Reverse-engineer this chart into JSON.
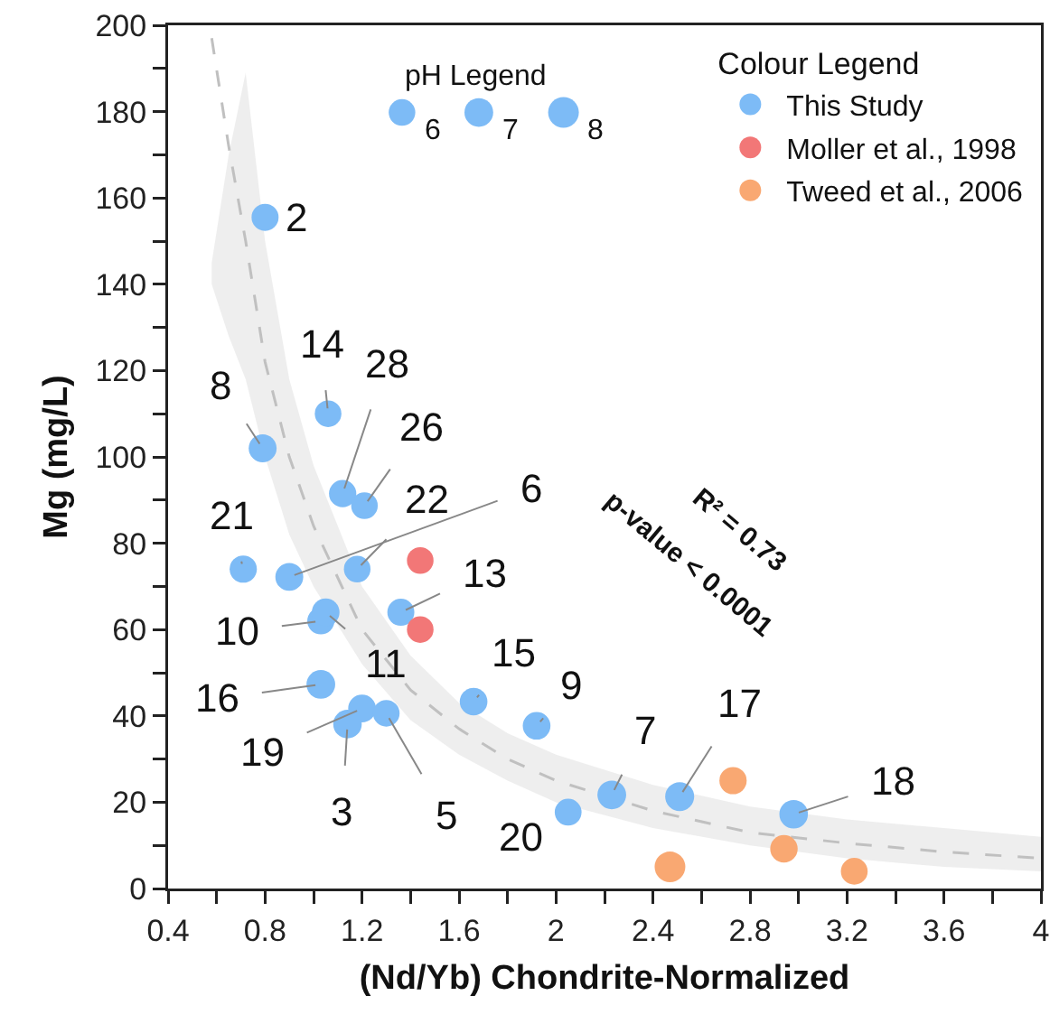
{
  "chart_data": {
    "type": "bubble",
    "xlabel": "(Nd/Yb) Chondrite-Normalized",
    "ylabel": "Mg (mg/L)",
    "legend_title": "Colour Legend",
    "legend": "top right",
    "marker": "circle",
    "grid": false,
    "xlim": [
      0.4,
      4
    ],
    "ylim": [
      0,
      200
    ],
    "xticks": [
      0.4,
      {
        "value": 0.6,
        "label": null
      },
      0.8,
      {
        "value": 1.0,
        "label": null
      },
      1.2,
      {
        "value": 1.4,
        "label": null
      },
      1.6,
      {
        "value": 1.8,
        "label": null
      },
      2,
      {
        "value": 2.2,
        "label": null
      },
      2.4,
      {
        "value": 2.6,
        "label": null
      },
      2.8,
      {
        "value": 3.0,
        "label": null
      },
      3.2,
      {
        "value": 3.4,
        "label": null
      },
      3.6,
      {
        "value": 3.8,
        "label": null
      },
      4
    ],
    "yticks": [
      0,
      {
        "value": 10,
        "label": null
      },
      20,
      {
        "value": 30,
        "label": null
      },
      40,
      {
        "value": 50,
        "label": null
      },
      60,
      {
        "value": 70,
        "label": null
      },
      80,
      {
        "value": 90,
        "label": null
      },
      100,
      {
        "value": 110,
        "label": null
      },
      120,
      {
        "value": 130,
        "label": null
      },
      140,
      {
        "value": 150,
        "label": null
      },
      160,
      {
        "value": 170,
        "label": null
      },
      180,
      {
        "value": 190,
        "label": null
      },
      200
    ],
    "size_legend": [
      6,
      7,
      8
    ],
    "series": [
      {
        "type": "line",
        "marker": "none",
        "line_style": "dashed",
        "color": "#c0c0c0",
        "x": [
          0.58,
          0.65,
          0.72,
          0.8,
          0.9,
          1.0,
          1.2,
          1.4,
          1.6,
          1.8,
          2.0,
          2.4,
          2.8,
          3.2,
          3.6,
          4.0
        ],
        "values": [
          197,
          172,
          150,
          122,
          100,
          84,
          60,
          46,
          37,
          30,
          25,
          18,
          13,
          10.5,
          8.5,
          7
        ],
        "lower": [
          140,
          128,
          118,
          100,
          82,
          70,
          52,
          39,
          31,
          25,
          20,
          14,
          10,
          7,
          5,
          4
        ],
        "upper": [
          145,
          170,
          189,
          150,
          118,
          98,
          70,
          54,
          43,
          36,
          31,
          24,
          19,
          16,
          14,
          12
        ]
      },
      {
        "name": "This Study",
        "color": "#7dbbf6",
        "x": [
          0.8,
          1.06,
          0.79,
          1.12,
          1.21,
          0.71,
          1.18,
          0.9,
          1.36,
          1.03,
          1.05,
          1.03,
          1.2,
          1.14,
          1.3,
          1.66,
          1.92,
          2.05,
          2.23,
          2.51,
          2.98
        ],
        "values": [
          155.5,
          110,
          102,
          91.5,
          88.7,
          74,
          74,
          72.2,
          64,
          62,
          64,
          47.3,
          41.7,
          38.1,
          40.6,
          43.3,
          37.7,
          17.7,
          21.7,
          21.3,
          17.2
        ],
        "sizes": [
          6.2,
          6,
          6.6,
          6.3,
          6,
          6.3,
          6,
          6.6,
          6.2,
          6.2,
          6.5,
          7,
          6.5,
          6.9,
          6,
          6.5,
          6.5,
          6.1,
          7,
          7.1,
          6.9
        ]
      },
      {
        "name": "Moller et al., 1998",
        "color": "#f27777",
        "x": [
          1.44,
          1.44
        ],
        "values": [
          76,
          60
        ],
        "sizes": [
          6,
          6
        ]
      },
      {
        "name": "Tweed et al., 2006",
        "color": "#f9a872",
        "x": [
          2.73,
          2.47,
          2.94,
          3.23
        ],
        "values": [
          25,
          5,
          9.2,
          4
        ],
        "sizes": [
          6.3,
          8,
          6.4,
          6.1
        ]
      }
    ],
    "annotations": [
      "pH Legend",
      "R² = 0.73",
      "p-value < 0.0001",
      {
        "text": "2",
        "x": 0.8,
        "y": 155.5
      },
      {
        "text": "14",
        "x": 1.06,
        "y": 110
      },
      {
        "text": "8",
        "x": 0.79,
        "y": 102
      },
      {
        "text": "28",
        "x": 1.12,
        "y": 91.5
      },
      {
        "text": "26",
        "x": 1.21,
        "y": 88.7
      },
      {
        "text": "21",
        "x": 0.71,
        "y": 74
      },
      {
        "text": "22",
        "x": 1.18,
        "y": 74
      },
      {
        "text": "6",
        "x": 0.9,
        "y": 72.2
      },
      {
        "text": "13",
        "x": 1.36,
        "y": 64
      },
      {
        "text": "10",
        "x": 1.03,
        "y": 62
      },
      {
        "text": "11",
        "x": 1.05,
        "y": 64
      },
      {
        "text": "16",
        "x": 1.03,
        "y": 47.3
      },
      {
        "text": "19",
        "x": 1.2,
        "y": 41.7
      },
      {
        "text": "3",
        "x": 1.14,
        "y": 38.1
      },
      {
        "text": "5",
        "x": 1.3,
        "y": 40.6
      },
      {
        "text": "15",
        "x": 1.66,
        "y": 43.3
      },
      {
        "text": "9",
        "x": 1.92,
        "y": 37.7
      },
      {
        "text": "20",
        "x": 2.05,
        "y": 17.7
      },
      {
        "text": "7",
        "x": 2.23,
        "y": 21.7
      },
      {
        "text": "17",
        "x": 2.51,
        "y": 21.3
      },
      {
        "text": "18",
        "x": 2.98,
        "y": 17.2
      }
    ]
  }
}
